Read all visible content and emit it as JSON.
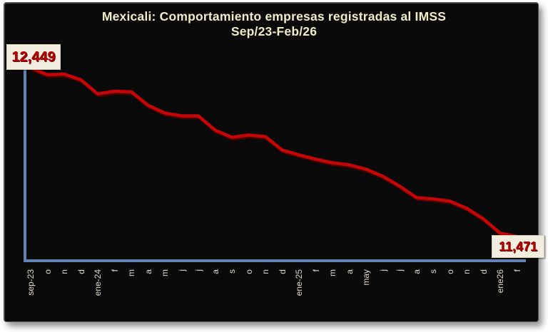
{
  "panel": {
    "background": "#0a0a0a",
    "page_background": "#ffffff"
  },
  "chart_data": {
    "type": "line",
    "title": "Mexicali: Comportamiento empresas registradas al IMSS",
    "subtitle": "Sep/23-Feb/26",
    "title_color": "#f0ecc6",
    "line_color": "#c40606",
    "line_shadow_color": "#4d0000",
    "axis_color": "#6284b4",
    "tick_label_color": "#ddd8ce",
    "grid": false,
    "legend": false,
    "ylim": [
      11400,
      12500
    ],
    "categories": [
      "sep-23",
      "o",
      "n",
      "d",
      "ene-24",
      "f",
      "m",
      "a",
      "m",
      "j",
      "j",
      "a",
      "s",
      "o",
      "n",
      "d",
      "ene-25",
      "f",
      "m",
      "a",
      "may",
      "j",
      "j",
      "a",
      "s",
      "o",
      "n",
      "d",
      "ene26",
      "f"
    ],
    "values": [
      12449,
      12408,
      12412,
      12379,
      12297,
      12313,
      12309,
      12231,
      12186,
      12170,
      12170,
      12087,
      12046,
      12059,
      12050,
      11972,
      11944,
      11919,
      11898,
      11886,
      11861,
      11820,
      11763,
      11697,
      11689,
      11676,
      11635,
      11573,
      11491,
      11471
    ],
    "start_label": "12,449",
    "end_label": "11,471"
  }
}
